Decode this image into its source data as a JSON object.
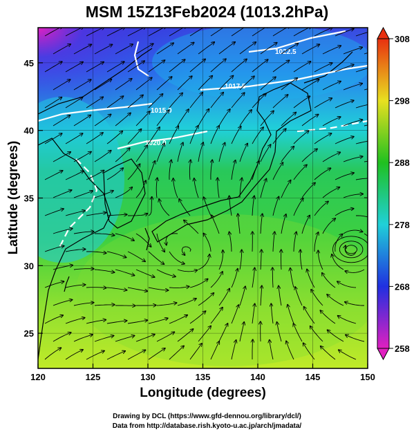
{
  "map": {
    "title": "MSM 15Z13Feb2024 (1013.2hPa)",
    "xlabel": "Longitude (degrees)",
    "ylabel": "Latitude  (degrees)",
    "lon_range": [
      120,
      150
    ],
    "lat_range": [
      22.4,
      47.6
    ],
    "lon_ticks": [
      "120",
      "125",
      "130",
      "135",
      "140",
      "145",
      "150"
    ],
    "lat_ticks": [
      "25",
      "30",
      "35",
      "40",
      "45"
    ],
    "isobar_labels": [
      "1015.0",
      "1017.5",
      "1020.0",
      "1022.5"
    ],
    "vortex_center_lon_lat": [
      148.5,
      31.2
    ]
  },
  "colorbar": {
    "ticks": [
      "258",
      "268",
      "278",
      "288",
      "298",
      "308"
    ],
    "range": [
      258,
      308
    ],
    "colors": [
      "#e020c0",
      "#2030e0",
      "#20d0d8",
      "#20c020",
      "#e8e020",
      "#e83010"
    ]
  },
  "credits": {
    "line1": "Drawing by DCL (https://www.gfd-dennou.org/library/dcl/)",
    "line2": "Data from http://database.rish.kyoto-u.ac.jp/arch/jmadata/"
  }
}
